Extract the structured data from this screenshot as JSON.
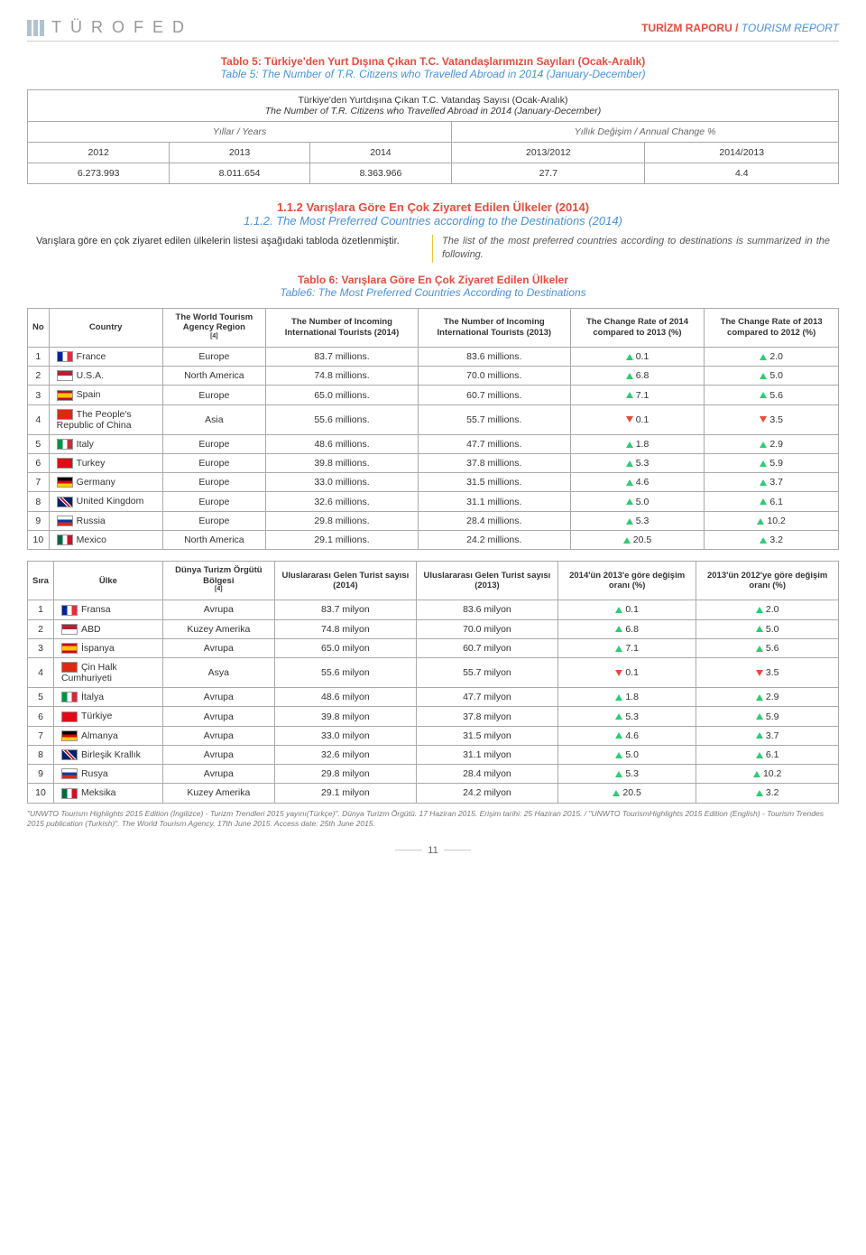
{
  "header": {
    "logo": "TÜROFED",
    "title_red": "TURİZM RAPORU /",
    "title_blue": "TOURISM REPORT"
  },
  "t5": {
    "title_l1": "Tablo 5: Türkiye'den Yurt Dışına Çıkan T.C. Vatandaşlarımızın Sayıları (Ocak-Aralık)",
    "title_l2": "Table 5: The Number of T.R. Citizens who Travelled Abroad in 2014 (January-December)",
    "box_l1": "Türkiye'den Yurtdışına Çıkan T.C. Vatandaş Sayısı (Ocak-Aralık)",
    "box_l2": "The Number of T.R. Citizens who Travelled Abroad in 2014 (January-December)",
    "years_label": "Yıllar / Years",
    "change_label": "Yıllık Değişim / Annual Change %",
    "cols": [
      "2012",
      "2013",
      "2014",
      "2013/2012",
      "2014/2013"
    ],
    "vals": [
      "6.273.993",
      "8.011.654",
      "8.363.966",
      "27.7",
      "4.4"
    ]
  },
  "sect": {
    "l1": "1.1.2 Varışlara Göre En Çok Ziyaret Edilen Ülkeler (2014)",
    "l2": "1.1.2. The Most Preferred Countries according to the Destinations (2014)",
    "left": "Varışlara göre en çok ziyaret edilen ülkelerin listesi aşağıdaki tabloda özetlenmiştir.",
    "right": "The list of the most preferred countries according to destinations is summarized in the following."
  },
  "t6": {
    "title_l1": "Tablo 6: Varışlara Göre En Çok Ziyaret Edilen Ülkeler",
    "title_l2": "Table6: The Most Preferred Countries According to Destinations",
    "en": {
      "h": [
        "No",
        "Country",
        "The World Tourism Agency Region",
        "The Number of Incoming International Tourists (2014)",
        "The Number of Incoming International Tourists (2013)",
        "The Change Rate of 2014 compared to 2013 (%)",
        "The Change Rate of 2013 compared to 2012 (%)"
      ],
      "rows": [
        {
          "n": "1",
          "c": "France",
          "flag": "fr",
          "r": "Europe",
          "v14": "83.7 millions.",
          "v13": "83.6 millions.",
          "d1": "0.1",
          "t1": "up",
          "d2": "2.0",
          "t2": "up"
        },
        {
          "n": "2",
          "c": "U.S.A.",
          "flag": "us",
          "r": "North America",
          "v14": "74.8 millions.",
          "v13": "70.0 millions.",
          "d1": "6.8",
          "t1": "up",
          "d2": "5.0",
          "t2": "up"
        },
        {
          "n": "3",
          "c": "Spain",
          "flag": "es",
          "r": "Europe",
          "v14": "65.0 millions.",
          "v13": "60.7 millions.",
          "d1": "7.1",
          "t1": "up",
          "d2": "5.6",
          "t2": "up"
        },
        {
          "n": "4",
          "c": "The People's Republic of China",
          "flag": "cn",
          "r": "Asia",
          "v14": "55.6 millions.",
          "v13": "55.7 millions.",
          "d1": "0.1",
          "t1": "down",
          "d2": "3.5",
          "t2": "down"
        },
        {
          "n": "5",
          "c": "Italy",
          "flag": "it",
          "r": "Europe",
          "v14": "48.6 millions.",
          "v13": "47.7 millions.",
          "d1": "1.8",
          "t1": "up",
          "d2": "2.9",
          "t2": "up"
        },
        {
          "n": "6",
          "c": "Turkey",
          "flag": "tr",
          "r": "Europe",
          "v14": "39.8 millions.",
          "v13": "37.8 millions.",
          "d1": "5.3",
          "t1": "up",
          "d2": "5.9",
          "t2": "up"
        },
        {
          "n": "7",
          "c": "Germany",
          "flag": "de",
          "r": "Europe",
          "v14": "33.0 millions.",
          "v13": "31.5 millions.",
          "d1": "4.6",
          "t1": "up",
          "d2": "3.7",
          "t2": "up"
        },
        {
          "n": "8",
          "c": "United Kingdom",
          "flag": "gb",
          "r": "Europe",
          "v14": "32.6 millions.",
          "v13": "31.1 millions.",
          "d1": "5.0",
          "t1": "up",
          "d2": "6.1",
          "t2": "up"
        },
        {
          "n": "9",
          "c": "Russia",
          "flag": "ru",
          "r": "Europe",
          "v14": "29.8 millions.",
          "v13": "28.4 millions.",
          "d1": "5.3",
          "t1": "up",
          "d2": "10.2",
          "t2": "up"
        },
        {
          "n": "10",
          "c": "Mexico",
          "flag": "mx",
          "r": "North America",
          "v14": "29.1 millions.",
          "v13": "24.2 millions.",
          "d1": "20.5",
          "t1": "up",
          "d2": "3.2",
          "t2": "up"
        }
      ]
    },
    "tr": {
      "h": [
        "Sıra",
        "Ülke",
        "Dünya Turizm Örgütü Bölgesi",
        "Uluslararası Gelen Turist sayısı (2014)",
        "Uluslararası Gelen Turist sayısı (2013)",
        "2014'ün 2013'e göre değişim oranı (%)",
        "2013'ün 2012'ye göre değişim oranı (%)"
      ],
      "rows": [
        {
          "n": "1",
          "c": "Fransa",
          "flag": "fr",
          "r": "Avrupa",
          "v14": "83.7 milyon",
          "v13": "83.6 milyon",
          "d1": "0.1",
          "t1": "up",
          "d2": "2.0",
          "t2": "up"
        },
        {
          "n": "2",
          "c": "ABD",
          "flag": "us",
          "r": "Kuzey Amerika",
          "v14": "74.8 milyon",
          "v13": "70.0 milyon",
          "d1": "6.8",
          "t1": "up",
          "d2": "5.0",
          "t2": "up"
        },
        {
          "n": "3",
          "c": "İspanya",
          "flag": "es",
          "r": "Avrupa",
          "v14": "65.0 milyon",
          "v13": "60.7 milyon",
          "d1": "7.1",
          "t1": "up",
          "d2": "5.6",
          "t2": "up"
        },
        {
          "n": "4",
          "c": "Çin Halk Cumhuriyeti",
          "flag": "cn",
          "r": "Asya",
          "v14": "55.6 milyon",
          "v13": "55.7 milyon",
          "d1": "0.1",
          "t1": "down",
          "d2": "3.5",
          "t2": "down"
        },
        {
          "n": "5",
          "c": "İtalya",
          "flag": "it",
          "r": "Avrupa",
          "v14": "48.6 milyon",
          "v13": "47.7 milyon",
          "d1": "1.8",
          "t1": "up",
          "d2": "2.9",
          "t2": "up"
        },
        {
          "n": "6",
          "c": "Türkiye",
          "flag": "tr",
          "r": "Avrupa",
          "v14": "39.8 milyon",
          "v13": "37.8 milyon",
          "d1": "5.3",
          "t1": "up",
          "d2": "5.9",
          "t2": "up"
        },
        {
          "n": "7",
          "c": "Almanya",
          "flag": "de",
          "r": "Avrupa",
          "v14": "33.0 milyon",
          "v13": "31.5 milyon",
          "d1": "4.6",
          "t1": "up",
          "d2": "3.7",
          "t2": "up"
        },
        {
          "n": "8",
          "c": "Birleşik Krallık",
          "flag": "gb",
          "r": "Avrupa",
          "v14": "32.6 milyon",
          "v13": "31.1 milyon",
          "d1": "5.0",
          "t1": "up",
          "d2": "6.1",
          "t2": "up"
        },
        {
          "n": "9",
          "c": "Rusya",
          "flag": "ru",
          "r": "Avrupa",
          "v14": "29.8 milyon",
          "v13": "28.4 milyon",
          "d1": "5.3",
          "t1": "up",
          "d2": "10.2",
          "t2": "up"
        },
        {
          "n": "10",
          "c": "Meksika",
          "flag": "mx",
          "r": "Kuzey Amerika",
          "v14": "29.1 milyon",
          "v13": "24.2 milyon",
          "d1": "20.5",
          "t1": "up",
          "d2": "3.2",
          "t2": "up"
        }
      ]
    }
  },
  "flags": {
    "fr": "linear-gradient(90deg,#002395 33%,#fff 33% 66%,#ed2939 66%)",
    "us": "linear-gradient(#b22234 50%,#fff 50%)",
    "es": "linear-gradient(#c60b1e 25%,#ffc400 25% 75%,#c60b1e 75%)",
    "cn": "#de2910",
    "it": "linear-gradient(90deg,#009246 33%,#fff 33% 66%,#ce2b37 66%)",
    "tr": "#e30a17",
    "de": "linear-gradient(#000 33%,#dd0000 33% 66%,#ffce00 66%)",
    "gb": "linear-gradient(45deg,#012169 40%,#fff 40% 45%,#c8102e 45% 55%,#fff 55% 60%,#012169 60%)",
    "ru": "linear-gradient(#fff 33%,#0039a6 33% 66%,#d52b1e 66%)",
    "mx": "linear-gradient(90deg,#006847 33%,#fff 33% 66%,#ce1126 66%)"
  },
  "footnote": "\"UNWTO Tourism Highlights 2015 Edition (İngilizce) - Turizm Trendleri 2015 yayını(Türkçe)\". Dünya Turizm Örgütü. 17 Haziran 2015. Erişim tarihi: 25 Haziran 2015. / \"UNWTO TourismHighlights 2015 Edition (English) - Tourism Trendes 2015 publication (Turkish)\". The World Tourism Agency. 17th June 2015. Access date: 25th June 2015.",
  "pagenum": "11",
  "sup4": "[4]"
}
